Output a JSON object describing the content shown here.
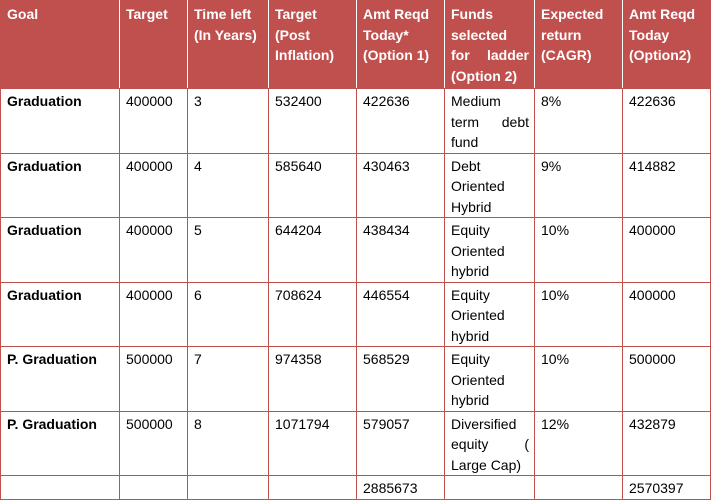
{
  "headers": [
    "Goal",
    "Target",
    "Time left (In Years)",
    "Target (Post Inflation)",
    "Amt Reqd Today* (Option 1)",
    "Funds selected for ladder (Option 2)",
    "Expected return (CAGR)",
    "Amt Reqd Today (Option2)"
  ],
  "rows": [
    {
      "goal": "Graduation",
      "target": "400000",
      "time_left": "3",
      "target_post_inflation": "532400",
      "amt_option1": "422636",
      "funds": "Medium term debt fund",
      "cagr": "8%",
      "amt_option2": "422636"
    },
    {
      "goal": "Graduation",
      "target": "400000",
      "time_left": "4",
      "target_post_inflation": "585640",
      "amt_option1": "430463",
      "funds": "Debt Oriented Hybrid",
      "cagr": "9%",
      "amt_option2": "414882"
    },
    {
      "goal": "Graduation",
      "target": "400000",
      "time_left": "5",
      "target_post_inflation": "644204",
      "amt_option1": "438434",
      "funds": "Equity Oriented hybrid",
      "cagr": "10%",
      "amt_option2": "400000"
    },
    {
      "goal": "Graduation",
      "target": "400000",
      "time_left": "6",
      "target_post_inflation": "708624",
      "amt_option1": "446554",
      "funds": "Equity Oriented hybrid",
      "cagr": "10%",
      "amt_option2": "400000"
    },
    {
      "goal": "P. Graduation",
      "target": "500000",
      "time_left": "7",
      "target_post_inflation": "974358",
      "amt_option1": "568529",
      "funds": "Equity Oriented hybrid",
      "cagr": "10%",
      "amt_option2": "500000"
    },
    {
      "goal": "P. Graduation",
      "target": "500000",
      "time_left": "8",
      "target_post_inflation": "1071794",
      "amt_option1": "579057",
      "funds": "Diversified equity ( Large Cap)",
      "cagr": "12%",
      "amt_option2": "432879"
    }
  ],
  "totals": {
    "amt_option1": "2885673",
    "amt_option2": "2570397"
  },
  "colors": {
    "header_bg": "#c0504d",
    "header_text": "#ffffff",
    "border": "#c0504d"
  }
}
